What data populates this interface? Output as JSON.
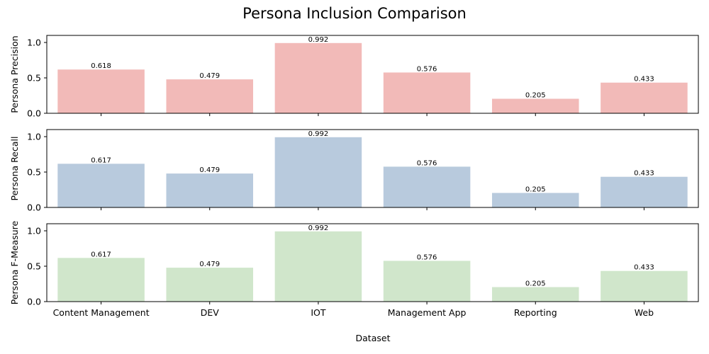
{
  "chart_data": {
    "type": "bar",
    "title": "Persona Inclusion Comparison",
    "xlabel": "Dataset",
    "categories": [
      "Content Management",
      "DEV",
      "IOT",
      "Management App",
      "Reporting",
      "Web"
    ],
    "ylim": [
      0,
      1.1
    ],
    "yticks": [
      "0.0",
      "0.5",
      "1.0"
    ],
    "panels": [
      {
        "ylabel": "Persona Precision",
        "color": "#f2bab8",
        "values": [
          0.618,
          0.479,
          0.992,
          0.576,
          0.205,
          0.433
        ],
        "labels": [
          "0.618",
          "0.479",
          "0.992",
          "0.576",
          "0.205",
          "0.433"
        ]
      },
      {
        "ylabel": "Persona Recall",
        "color": "#b8cadd",
        "values": [
          0.617,
          0.479,
          0.992,
          0.576,
          0.205,
          0.433
        ],
        "labels": [
          "0.617",
          "0.479",
          "0.992",
          "0.576",
          "0.205",
          "0.433"
        ]
      },
      {
        "ylabel": "Persona F-Measure",
        "color": "#d0e6cb",
        "values": [
          0.617,
          0.479,
          0.992,
          0.576,
          0.205,
          0.433
        ],
        "labels": [
          "0.617",
          "0.479",
          "0.992",
          "0.576",
          "0.205",
          "0.433"
        ]
      }
    ],
    "grid": false,
    "legend": "none"
  }
}
